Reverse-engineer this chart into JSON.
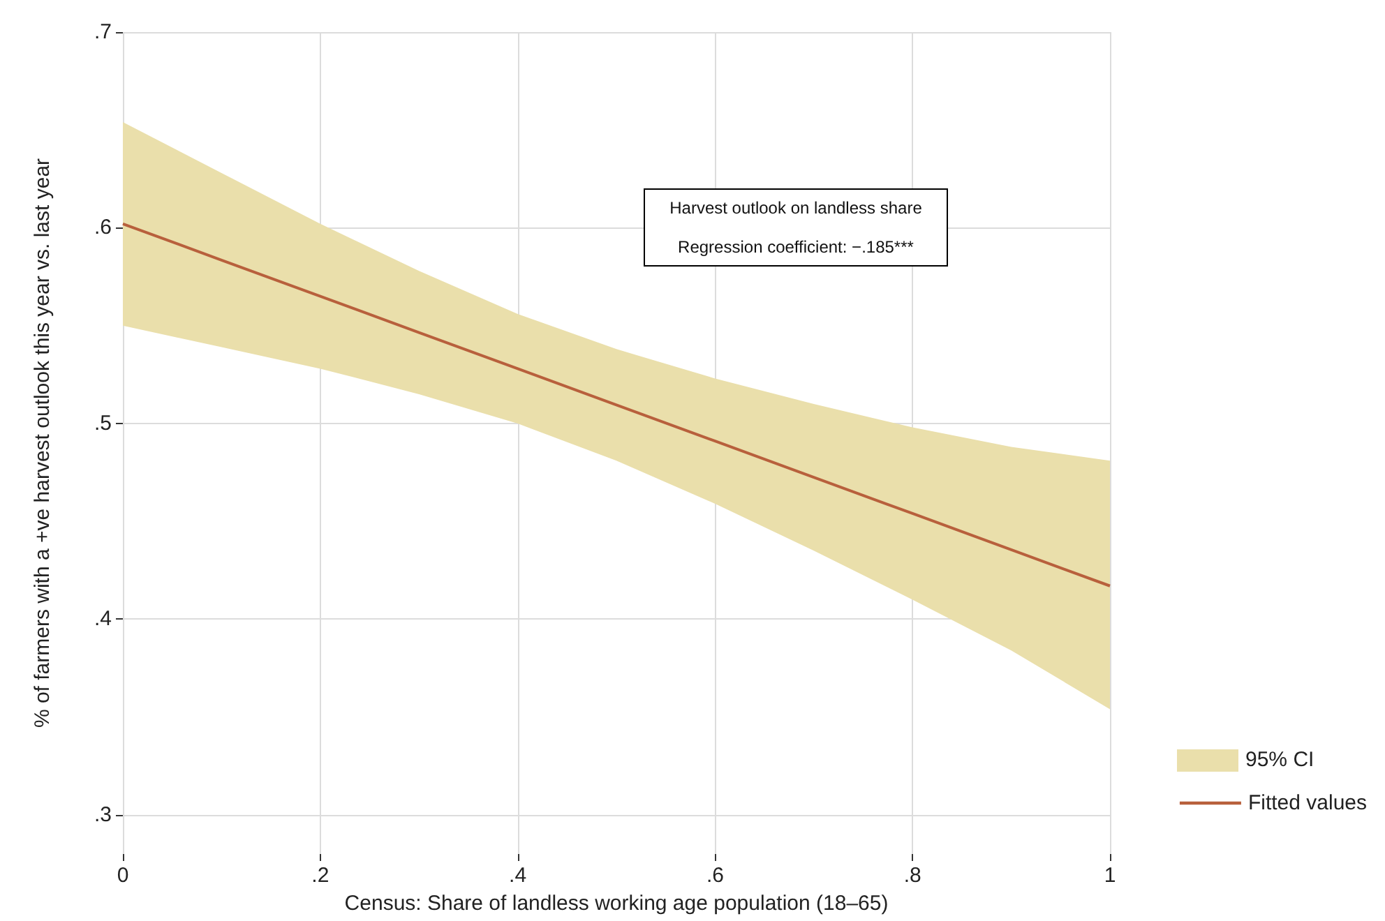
{
  "chart_data": {
    "type": "line",
    "xlabel": "Census: Share of landless working age population (18–65)",
    "ylabel": "% of farmers with a +ve harvest outlook this year vs. last year",
    "x": [
      0,
      0.1,
      0.2,
      0.3,
      0.4,
      0.5,
      0.6,
      0.7,
      0.8,
      0.9,
      1
    ],
    "series": [
      {
        "name": "Fitted values",
        "color": "#b8603c",
        "values": [
          0.602,
          0.5835,
          0.565,
          0.5465,
          0.528,
          0.5095,
          0.491,
          0.4725,
          0.454,
          0.4355,
          0.417
        ],
        "lower": [
          0.55,
          0.539,
          0.528,
          0.515,
          0.5,
          0.481,
          0.459,
          0.435,
          0.41,
          0.384,
          0.354
        ],
        "upper": [
          0.654,
          0.628,
          0.602,
          0.578,
          0.556,
          0.538,
          0.523,
          0.51,
          0.498,
          0.488,
          0.481
        ]
      }
    ],
    "xlim": [
      0,
      1
    ],
    "ylim": [
      0.28,
      0.7
    ],
    "xticks": [
      0,
      {
        "value": 0.2,
        "label": ".2"
      },
      {
        "value": 0.4,
        "label": ".4"
      },
      {
        "value": 0.6,
        "label": ".6"
      },
      {
        "value": 0.8,
        "label": ".8"
      },
      1
    ],
    "yticks": [
      {
        "value": 0.3,
        "label": ".3"
      },
      {
        "value": 0.4,
        "label": ".4"
      },
      {
        "value": 0.5,
        "label": ".5"
      },
      {
        "value": 0.6,
        "label": ".6"
      },
      {
        "value": 0.7,
        "label": ".7"
      }
    ],
    "grid": true,
    "legend": "bottom right",
    "marker": "none",
    "line_style": "solid",
    "annotations": [
      "95% CI",
      "Harvest outlook on landless share",
      "Regression coefficient: −.185***"
    ]
  }
}
